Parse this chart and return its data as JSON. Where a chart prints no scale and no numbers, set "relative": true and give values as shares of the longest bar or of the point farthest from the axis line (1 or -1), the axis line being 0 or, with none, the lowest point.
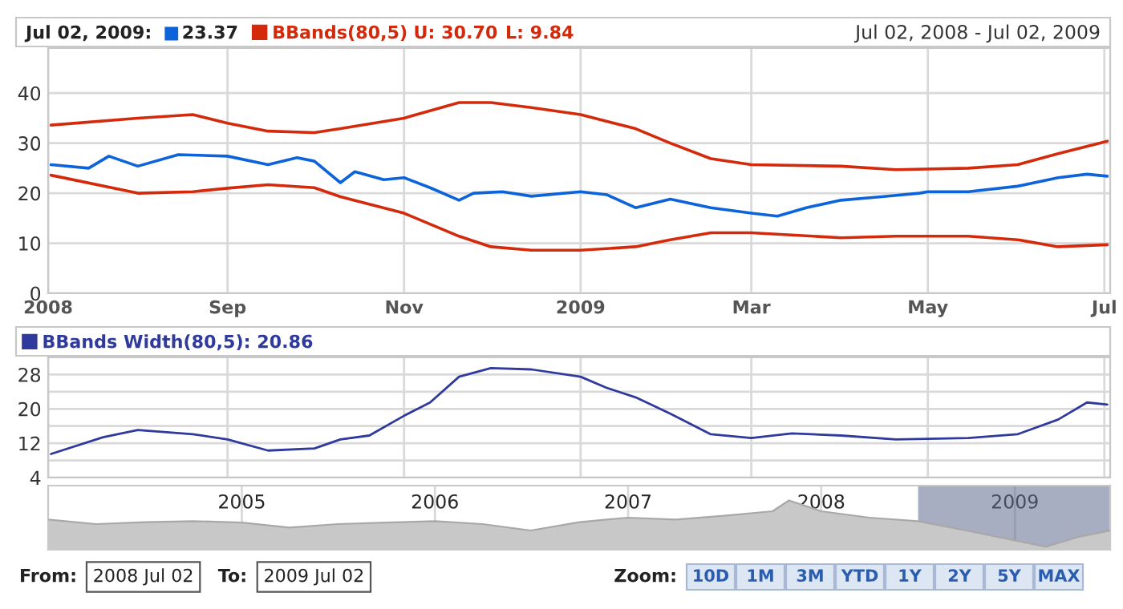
{
  "chart_data": [
    {
      "type": "line",
      "title": "Jul 02, 2009:",
      "subtitle": "Jul 02, 2008 - Jul 02, 2009",
      "annotations": [
        "23.37",
        "U: 30.70",
        "L: 9.84"
      ],
      "x": [
        "2008-07-02",
        "2008-07-15",
        "2008-07-22",
        "2008-08-01",
        "2008-08-15",
        "2008-09-01",
        "2008-09-15",
        "2008-09-25",
        "2008-10-01",
        "2008-10-10",
        "2008-10-15",
        "2008-10-25",
        "2008-11-01",
        "2008-11-10",
        "2008-11-20",
        "2008-11-25",
        "2008-12-05",
        "2008-12-15",
        "2009-01-01",
        "2009-01-10",
        "2009-01-20",
        "2009-02-01",
        "2009-02-15",
        "2009-03-01",
        "2009-03-10",
        "2009-03-20",
        "2009-04-01",
        "2009-04-15",
        "2009-04-28",
        "2009-05-01",
        "2009-05-15",
        "2009-06-01",
        "2009-06-15",
        "2009-06-25",
        "2009-07-02"
      ],
      "series": [
        {
          "color": "#0d63d9",
          "values": [
            25.7,
            25.0,
            27.4,
            25.4,
            27.7,
            27.4,
            25.7,
            27.1,
            26.4,
            22.1,
            24.3,
            22.7,
            23.1,
            21.1,
            18.6,
            20.0,
            20.3,
            19.4,
            20.3,
            19.7,
            17.1,
            18.8,
            17.1,
            16.0,
            15.4,
            17.1,
            18.6,
            19.3,
            20.0,
            20.3,
            20.3,
            21.4,
            23.1,
            23.8,
            23.4
          ]
        },
        {
          "name": "BBands(80,5)",
          "color": "#d42a0c",
          "x": [
            "2008-07-02",
            "2008-08-01",
            "2008-08-20",
            "2008-09-01",
            "2008-09-15",
            "2008-10-01",
            "2008-10-10",
            "2008-11-01",
            "2008-11-20",
            "2008-12-01",
            "2008-12-15",
            "2009-01-01",
            "2009-01-20",
            "2009-02-01",
            "2009-02-15",
            "2009-03-01",
            "2009-04-01",
            "2009-04-20",
            "2009-05-15",
            "2009-06-01",
            "2009-06-15",
            "2009-07-02"
          ],
          "values": [
            33.6,
            35.0,
            35.7,
            34.0,
            32.4,
            32.1,
            32.9,
            35.0,
            38.1,
            38.1,
            37.1,
            35.7,
            32.9,
            30.0,
            26.9,
            25.7,
            25.4,
            24.7,
            25.0,
            25.7,
            27.9,
            30.4
          ]
        },
        {
          "color": "#d42a0c",
          "x": [
            "2008-07-02",
            "2008-08-01",
            "2008-08-20",
            "2008-09-01",
            "2008-09-15",
            "2008-10-01",
            "2008-10-10",
            "2008-11-01",
            "2008-11-20",
            "2008-12-01",
            "2008-12-15",
            "2009-01-01",
            "2009-01-20",
            "2009-02-01",
            "2009-02-15",
            "2009-03-01",
            "2009-04-01",
            "2009-04-20",
            "2009-05-15",
            "2009-06-01",
            "2009-06-15",
            "2009-07-02"
          ],
          "values": [
            23.6,
            20.0,
            20.3,
            21.0,
            21.7,
            21.1,
            19.3,
            16.0,
            11.4,
            9.3,
            8.6,
            8.6,
            9.3,
            10.7,
            12.1,
            12.1,
            11.1,
            11.4,
            11.4,
            10.7,
            9.3,
            9.7
          ]
        }
      ],
      "xlim": [
        "2008-07-01",
        "2009-07-03"
      ],
      "xticks": [
        {
          "value": "2008-07-01",
          "label": "2008"
        },
        {
          "value": "2008-09-01",
          "label": "Sep"
        },
        {
          "value": "2008-11-01",
          "label": "Nov"
        },
        {
          "value": "2009-01-01",
          "label": "2009"
        },
        {
          "value": "2009-03-01",
          "label": "Mar"
        },
        {
          "value": "2009-05-01",
          "label": "May"
        },
        {
          "value": "2009-07-01",
          "label": "Jul"
        }
      ],
      "ylim": [
        0,
        49
      ],
      "yticks": [
        0,
        10,
        20,
        30,
        40
      ],
      "grid": true,
      "legend": "top left"
    },
    {
      "type": "line",
      "x": [
        "2008-07-02",
        "2008-07-20",
        "2008-08-01",
        "2008-08-20",
        "2008-09-01",
        "2008-09-15",
        "2008-10-01",
        "2008-10-10",
        "2008-10-20",
        "2008-11-01",
        "2008-11-10",
        "2008-11-20",
        "2008-12-01",
        "2008-12-15",
        "2009-01-01",
        "2009-01-10",
        "2009-01-20",
        "2009-02-01",
        "2009-02-15",
        "2009-03-01",
        "2009-03-15",
        "2009-04-01",
        "2009-04-20",
        "2009-05-15",
        "2009-06-01",
        "2009-06-15",
        "2009-06-25",
        "2009-07-02"
      ],
      "series": [
        {
          "name": "BBands Width(80,5): 20.86",
          "color": "#2f3a9c",
          "values": [
            9.5,
            13.4,
            15.1,
            14.1,
            12.9,
            10.3,
            10.8,
            12.9,
            13.8,
            18.4,
            21.5,
            27.5,
            29.5,
            29.2,
            27.5,
            24.9,
            22.7,
            18.9,
            14.1,
            13.2,
            14.3,
            13.8,
            12.9,
            13.2,
            14.1,
            17.5,
            21.5,
            21.0
          ]
        }
      ],
      "xlim": [
        "2008-07-01",
        "2009-07-03"
      ],
      "xticks": [
        {
          "value": "2008-07-01",
          "label": null
        },
        {
          "value": "2008-09-01",
          "label": null
        },
        {
          "value": "2008-11-01",
          "label": null
        },
        {
          "value": "2009-01-01",
          "label": null
        },
        {
          "value": "2009-03-01",
          "label": null
        },
        {
          "value": "2009-05-01",
          "label": null
        },
        {
          "value": "2009-07-01",
          "label": null
        }
      ],
      "ylim": [
        4,
        32
      ],
      "yticks": [
        4,
        {
          "value": 8,
          "label": null
        },
        12,
        {
          "value": 16,
          "label": null
        },
        20,
        {
          "value": 24,
          "label": null
        },
        28
      ],
      "tick_labels": "y",
      "grid": true,
      "legend": "top left"
    },
    {
      "type": "area",
      "relative": true,
      "x": [
        "2004-01-01",
        "2004-04-01",
        "2004-07-01",
        "2004-10-01",
        "2005-01-01",
        "2005-04-01",
        "2005-07-01",
        "2005-10-01",
        "2006-01-01",
        "2006-04-01",
        "2006-07-01",
        "2006-10-01",
        "2007-01-01",
        "2007-04-01",
        "2007-07-01",
        "2007-10-01",
        "2007-11-01",
        "2008-01-01",
        "2008-04-01",
        "2008-07-01",
        "2008-10-01",
        "2009-01-01",
        "2009-03-01",
        "2009-05-01",
        "2009-06-30"
      ],
      "series": [
        {
          "color": "#c8c8c8",
          "values": [
            0.61,
            0.52,
            0.56,
            0.58,
            0.55,
            0.45,
            0.52,
            0.55,
            0.58,
            0.52,
            0.39,
            0.56,
            0.65,
            0.61,
            0.69,
            0.78,
            1.0,
            0.78,
            0.65,
            0.58,
            0.39,
            0.19,
            0.06,
            0.26,
            0.39
          ]
        }
      ],
      "xlim": [
        "2004-01-01",
        "2009-06-30"
      ],
      "xticks": [
        {
          "value": "2005-01-01",
          "label": "2005"
        },
        {
          "value": "2006-01-01",
          "label": "2006"
        },
        {
          "value": "2007-01-01",
          "label": "2007"
        },
        {
          "value": "2008-01-01",
          "label": "2008"
        },
        {
          "value": "2009-01-01",
          "label": "2009"
        }
      ],
      "bands": [
        {
          "axis": "x",
          "from": "2008-07-02",
          "to": "2009-06-30",
          "color": "#5f6b8f"
        }
      ],
      "grid": "x",
      "annotations": [
        "From:",
        "2008 Jul 02",
        "To:",
        "2009 Jul 02",
        "Zoom:",
        "10D",
        "1M",
        "3M",
        "YTD",
        "1Y",
        "2Y",
        "5Y",
        "MAX"
      ]
    }
  ]
}
